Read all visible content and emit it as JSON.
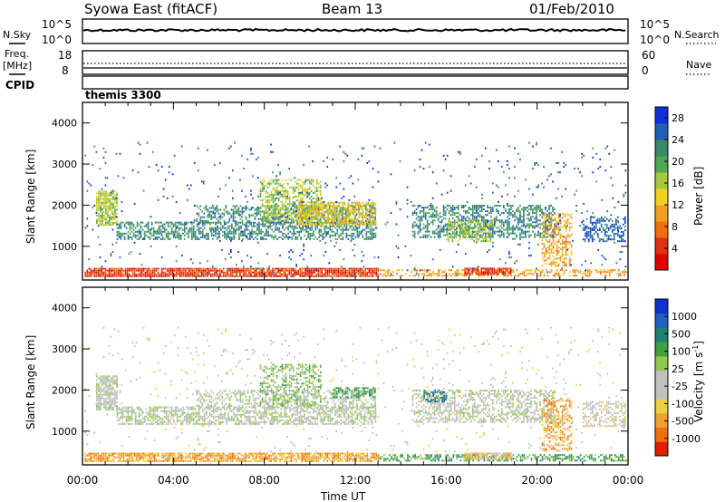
{
  "header": {
    "station": "Syowa East (fitACF)",
    "beam": "Beam 13",
    "date": "01/Feb/2010"
  },
  "top_panels": {
    "nsky_label": "N.Sky",
    "nsky_ticks": [
      "10^5",
      "10^0"
    ],
    "nsearch_label": "N.Search",
    "nsearch_ticks": [
      "10^5",
      "10^0"
    ],
    "freq_label": "Freq.",
    "freq_unit": "[MHz]",
    "freq_ticks": [
      "18",
      "8"
    ],
    "nave_label": "Nave",
    "nave_ticks": [
      "60",
      "0"
    ],
    "cpid_label": "CPID",
    "cpid_value": "themis 3300"
  },
  "colors": {
    "power": [
      "#1030e0",
      "#2060b0",
      "#3a8a6a",
      "#50a850",
      "#a8c83c",
      "#f0d020",
      "#f0a020",
      "#f07010",
      "#e03010",
      "#e00000"
    ],
    "velocity": [
      "#1030d0",
      "#2060c0",
      "#208070",
      "#40a040",
      "#90c850",
      "#c0c0c0",
      "#c0c0c0",
      "#e8d040",
      "#f0a030",
      "#f07010",
      "#e02000"
    ]
  },
  "chart_data": [
    {
      "type": "heatmap",
      "name": "power",
      "xlabel": "",
      "ylabel": "Slant Range [km]",
      "x_ticks": [
        "",
        "",
        "",
        "",
        "",
        "",
        ""
      ],
      "y_ticks": [
        "1000",
        "2000",
        "3000",
        "4000"
      ],
      "y_tick_values": [
        1000,
        2000,
        3000,
        4000
      ],
      "ylim": [
        180,
        4500
      ],
      "xlim_hours": [
        0,
        24
      ],
      "colorbar": {
        "label": "Power [dB]",
        "ticks": [
          "4",
          "8",
          "12",
          "16",
          "20",
          "24",
          "28"
        ],
        "tick_values": [
          4,
          8,
          12,
          16,
          20,
          24,
          28
        ],
        "range": [
          0,
          30
        ]
      },
      "bands": [
        {
          "t0": 0.1,
          "t1": 13.0,
          "r0": 250,
          "r1": 450,
          "level": 8,
          "density": 0.9
        },
        {
          "t0": 13.0,
          "t1": 23.9,
          "r0": 260,
          "r1": 400,
          "level": 6,
          "density": 0.5
        },
        {
          "t0": 16.8,
          "t1": 18.8,
          "r0": 300,
          "r1": 470,
          "level": 8,
          "density": 0.9
        },
        {
          "t0": 0.6,
          "t1": 1.5,
          "r0": 1500,
          "r1": 2350,
          "level": 4,
          "density": 0.8
        },
        {
          "t0": 1.5,
          "t1": 12.9,
          "r0": 1150,
          "r1": 1600,
          "level": 2,
          "density": 0.55
        },
        {
          "t0": 5.0,
          "t1": 12.9,
          "r0": 1550,
          "r1": 2000,
          "level": 2,
          "density": 0.45
        },
        {
          "t0": 7.8,
          "t1": 10.5,
          "r0": 1600,
          "r1": 2600,
          "level": 4,
          "density": 0.55
        },
        {
          "t0": 9.5,
          "t1": 12.9,
          "r0": 1500,
          "r1": 2050,
          "level": 5,
          "density": 0.7
        },
        {
          "t0": 14.5,
          "t1": 20.8,
          "r0": 1200,
          "r1": 2000,
          "level": 2,
          "density": 0.5
        },
        {
          "t0": 16.0,
          "t1": 18.0,
          "r0": 1100,
          "r1": 1600,
          "level": 4,
          "density": 0.5
        },
        {
          "t0": 20.2,
          "t1": 21.5,
          "r0": 500,
          "r1": 1800,
          "level": 6,
          "density": 0.5
        },
        {
          "t0": 22.0,
          "t1": 23.9,
          "r0": 1100,
          "r1": 1700,
          "level": 1,
          "density": 0.5
        },
        {
          "t0": 0.1,
          "t1": 23.9,
          "r0": 300,
          "r1": 3500,
          "level": 1,
          "density": 0.025
        }
      ]
    },
    {
      "type": "heatmap",
      "name": "velocity",
      "xlabel": "Time UT",
      "ylabel": "Slant Range [km]",
      "x_ticks": [
        "00:00",
        "04:00",
        "08:00",
        "12:00",
        "16:00",
        "20:00",
        "00:00"
      ],
      "y_ticks": [
        "1000",
        "2000",
        "3000",
        "4000"
      ],
      "y_tick_values": [
        1000,
        2000,
        3000,
        4000
      ],
      "ylim": [
        180,
        4500
      ],
      "xlim_hours": [
        0,
        24
      ],
      "colorbar": {
        "label": "Velocity [m s^-1]",
        "ticks": [
          "1000",
          "500",
          "100",
          "25",
          "-25",
          "-100",
          "-500",
          "-1000"
        ],
        "tick_values": [
          1000,
          500,
          100,
          25,
          -25,
          -100,
          -500,
          -1000
        ]
      },
      "bands": [
        {
          "t0": 0.1,
          "t1": 13.0,
          "r0": 250,
          "r1": 450,
          "level": 8,
          "density": 0.8
        },
        {
          "t0": 13.0,
          "t1": 23.9,
          "r0": 260,
          "r1": 420,
          "level": 3,
          "density": 0.5
        },
        {
          "t0": 16.8,
          "t1": 18.8,
          "r0": 300,
          "r1": 470,
          "level": 7,
          "density": 0.8
        },
        {
          "t0": 0.6,
          "t1": 1.5,
          "r0": 1500,
          "r1": 2350,
          "level": 5,
          "density": 0.8
        },
        {
          "t0": 1.5,
          "t1": 12.9,
          "r0": 1150,
          "r1": 1600,
          "level": 5,
          "density": 0.6
        },
        {
          "t0": 5.0,
          "t1": 12.9,
          "r0": 1550,
          "r1": 2000,
          "level": 5,
          "density": 0.45
        },
        {
          "t0": 7.8,
          "t1": 10.5,
          "r0": 1600,
          "r1": 2600,
          "level": 4,
          "density": 0.45
        },
        {
          "t0": 11.0,
          "t1": 12.9,
          "r0": 1800,
          "r1": 2050,
          "level": 3,
          "density": 0.6
        },
        {
          "t0": 14.5,
          "t1": 20.8,
          "r0": 1200,
          "r1": 2000,
          "level": 5,
          "density": 0.5
        },
        {
          "t0": 15.0,
          "t1": 16.0,
          "r0": 1700,
          "r1": 2000,
          "level": 2,
          "density": 0.5
        },
        {
          "t0": 20.2,
          "t1": 21.5,
          "r0": 500,
          "r1": 1800,
          "level": 8,
          "density": 0.45
        },
        {
          "t0": 22.0,
          "t1": 23.9,
          "r0": 1100,
          "r1": 1700,
          "level": 6,
          "density": 0.5
        },
        {
          "t0": 0.1,
          "t1": 23.9,
          "r0": 300,
          "r1": 3500,
          "level": 6,
          "density": 0.025
        }
      ]
    }
  ]
}
